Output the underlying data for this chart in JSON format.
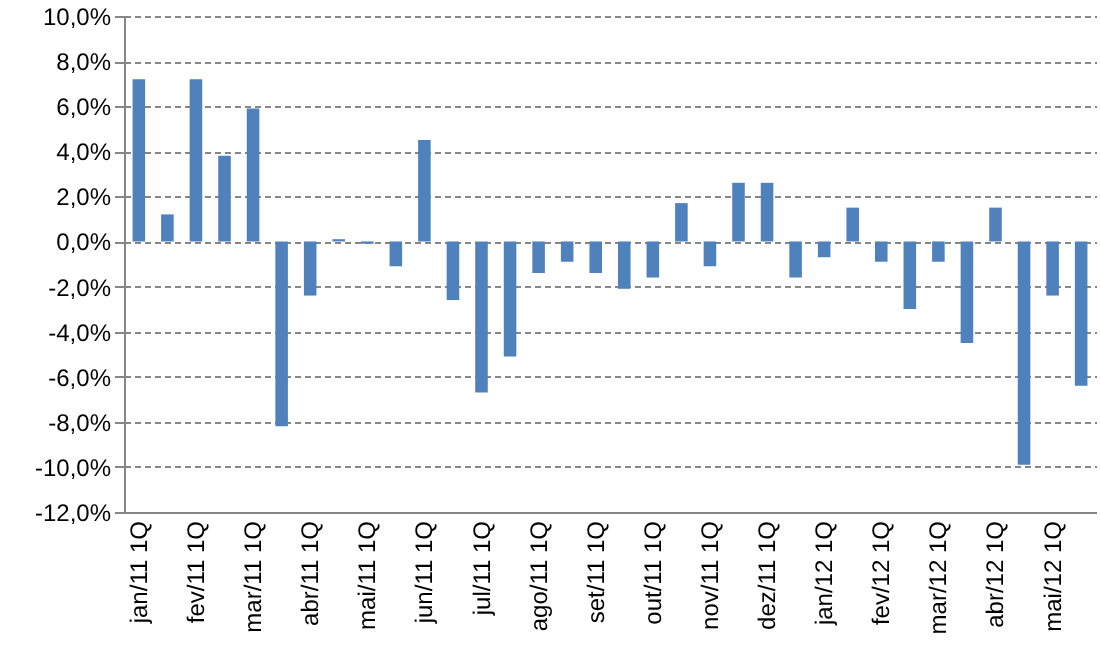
{
  "chart_data": {
    "type": "bar",
    "categories": [
      "jan/11 1Q",
      null,
      "fev/11 1Q",
      null,
      "mar/11 1Q",
      null,
      "abr/11 1Q",
      null,
      "mai/11 1Q",
      null,
      "jun/11 1Q",
      null,
      "jul/11 1Q",
      null,
      "ago/11 1Q",
      null,
      "set/11 1Q",
      null,
      "out/11 1Q",
      null,
      "nov/11 1Q",
      null,
      "dez/11 1Q",
      null,
      "jan/12 1Q",
      null,
      "fev/12 1Q",
      null,
      "mar/12 1Q",
      null,
      "abr/12 1Q",
      null,
      "mai/12 1Q",
      null
    ],
    "values": [
      7.2,
      1.2,
      7.2,
      3.8,
      5.9,
      -8.2,
      -2.4,
      0.1,
      -0.1,
      -1.1,
      4.5,
      -2.6,
      -6.7,
      -5.1,
      -1.4,
      -0.9,
      -1.4,
      -2.1,
      -1.6,
      1.7,
      -1.1,
      2.6,
      2.6,
      -1.6,
      -0.7,
      1.5,
      -0.9,
      -3.0,
      -0.9,
      -4.5,
      1.5,
      -9.9,
      -2.4,
      -6.4
    ],
    "color": "#4f81bd",
    "ylim": [
      -12,
      10
    ],
    "yticks": [
      {
        "value": -12,
        "label": "-12,0%"
      },
      {
        "value": -10,
        "label": "-10,0%"
      },
      {
        "value": -8,
        "label": "-8,0%"
      },
      {
        "value": -6,
        "label": "-6,0%"
      },
      {
        "value": -4,
        "label": "-4,0%"
      },
      {
        "value": -2,
        "label": "-2,0%"
      },
      {
        "value": 0,
        "label": "0,0%"
      },
      {
        "value": 2,
        "label": "2,0%"
      },
      {
        "value": 4,
        "label": "4,0%"
      },
      {
        "value": 6,
        "label": "6,0%"
      },
      {
        "value": 8,
        "label": "8,0%"
      },
      {
        "value": 10,
        "label": "10,0%"
      }
    ],
    "grid": "y"
  }
}
